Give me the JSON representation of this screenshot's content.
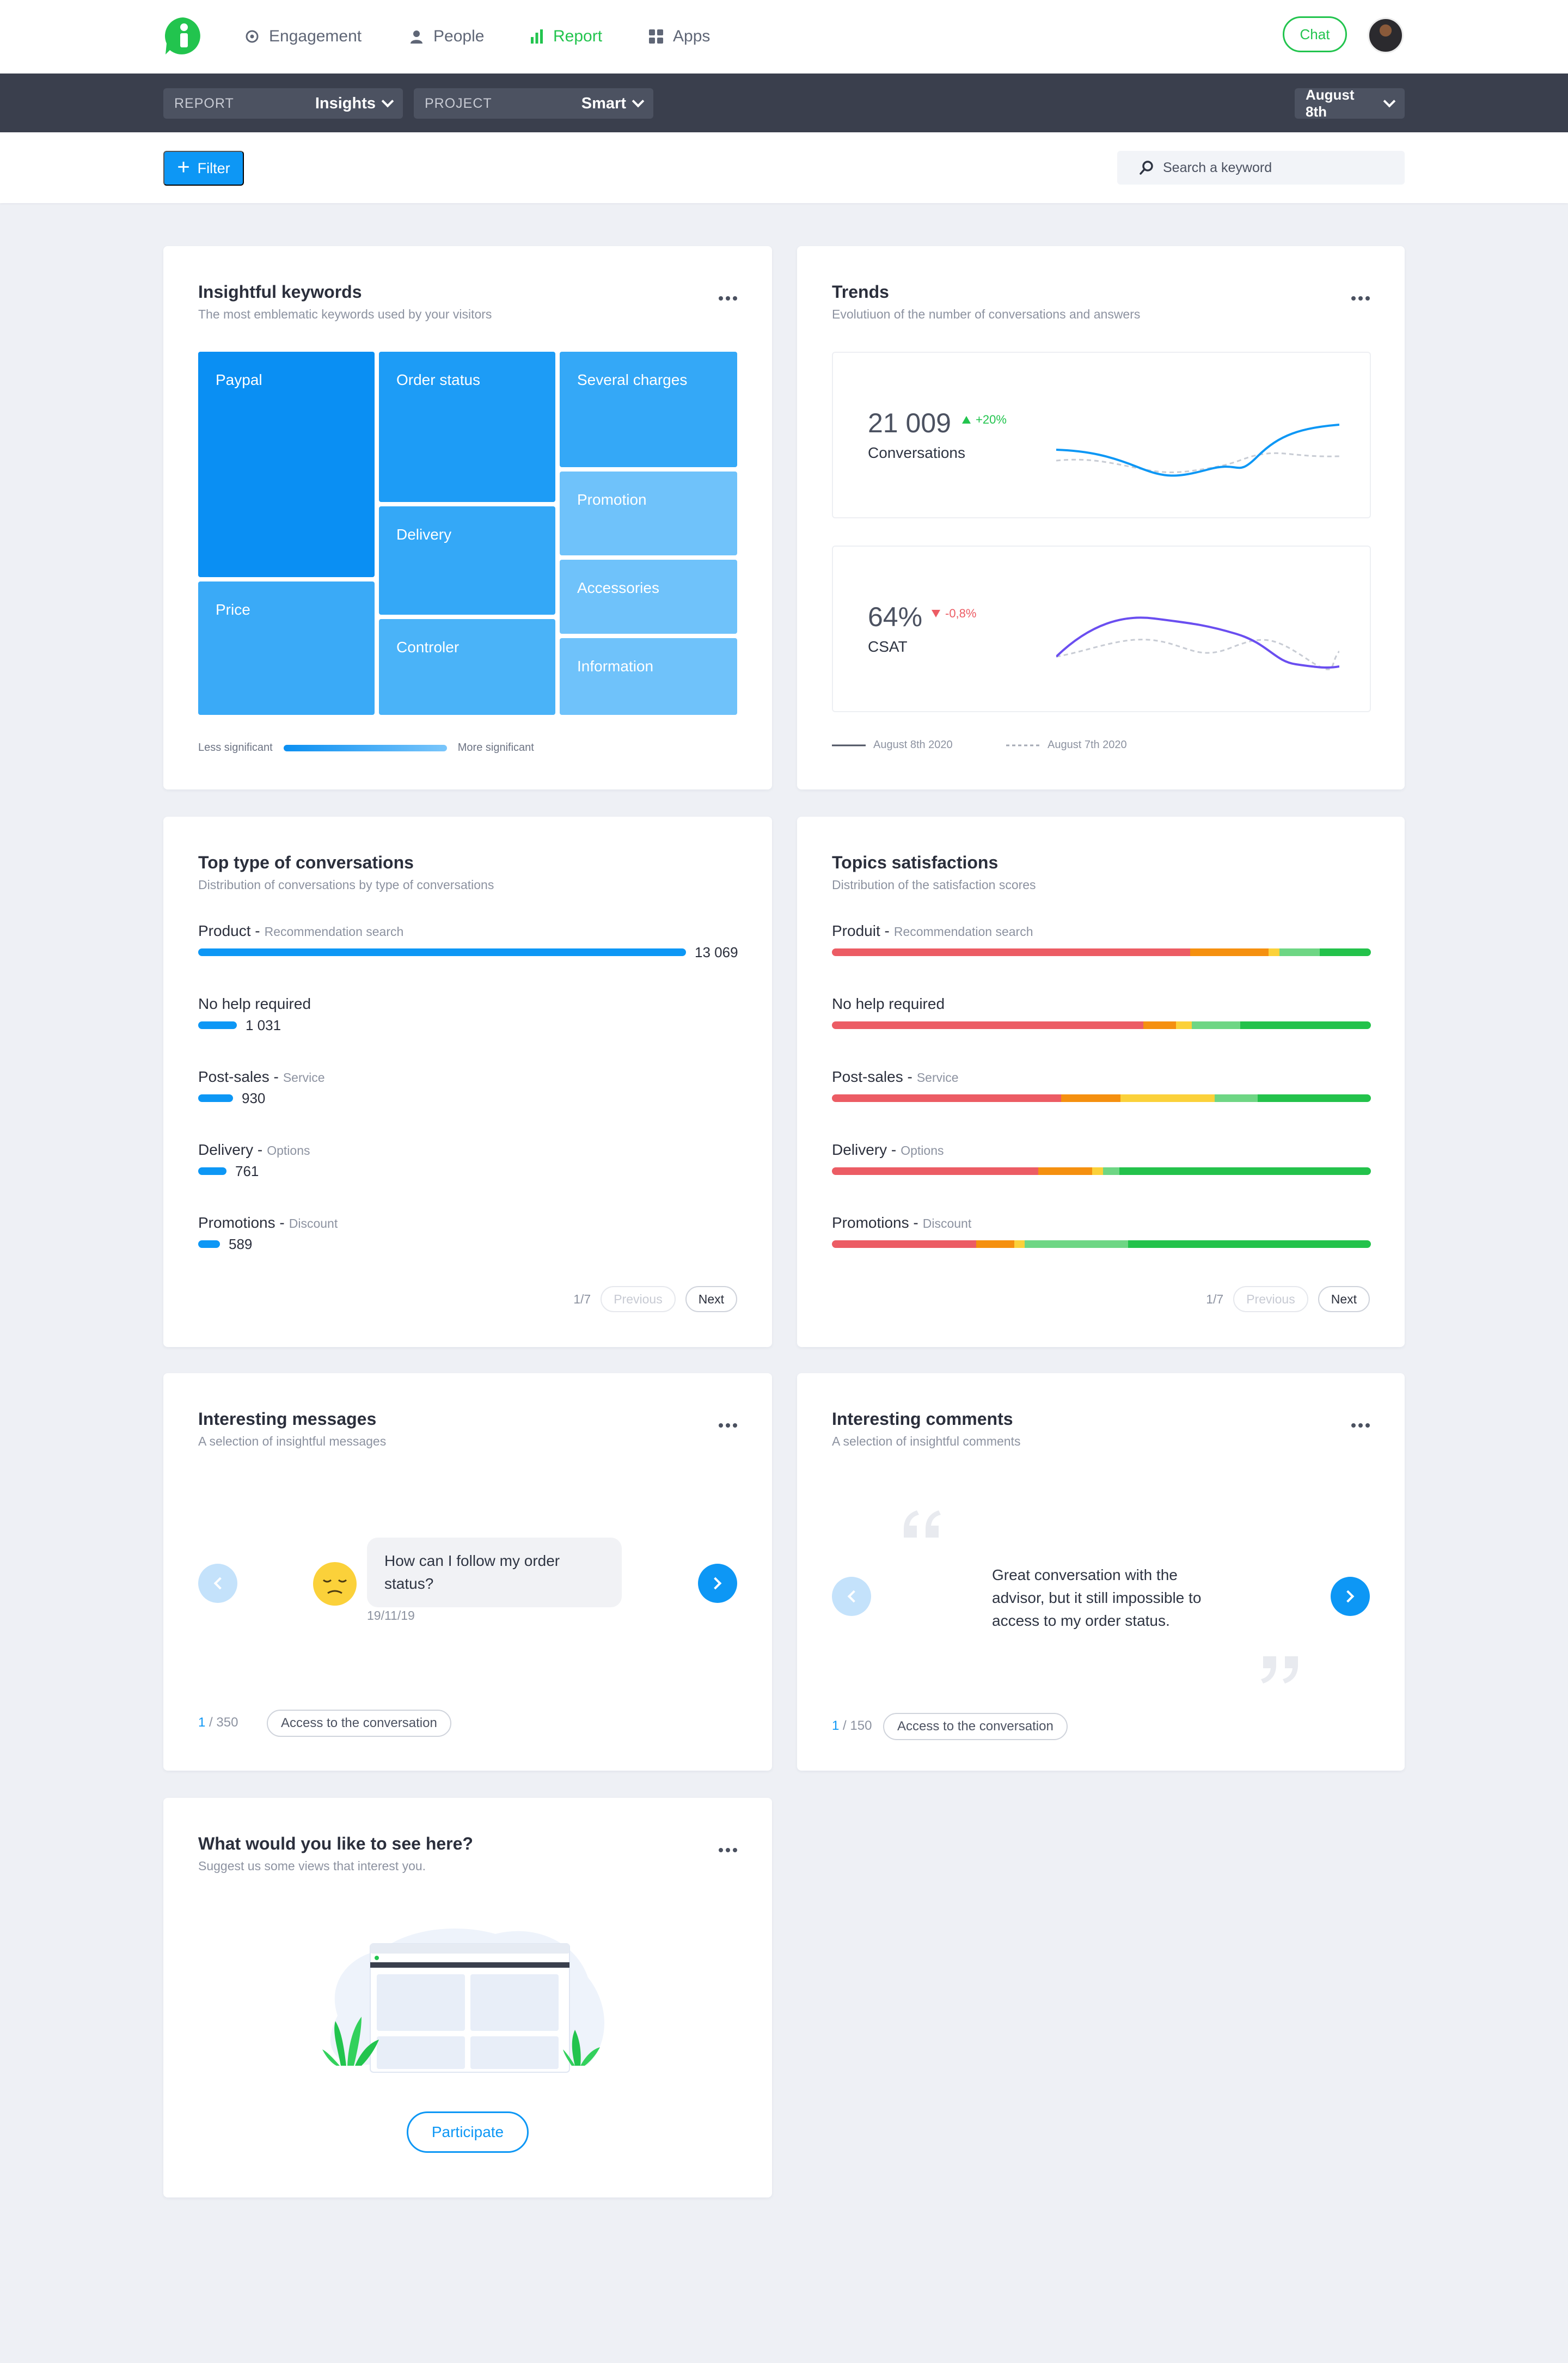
{
  "nav": {
    "items": [
      {
        "label": "Engagement",
        "icon": "target-icon",
        "active": false
      },
      {
        "label": "People",
        "icon": "person-icon",
        "active": false
      },
      {
        "label": "Report",
        "icon": "bar-chart-icon",
        "active": true
      },
      {
        "label": "Apps",
        "icon": "grid-icon",
        "active": false
      }
    ],
    "chat_label": "Chat"
  },
  "subbar": {
    "report_label": "REPORT",
    "report_value": "Insights",
    "project_label": "PROJECT",
    "project_value": "Smart",
    "date_value": "August 8th"
  },
  "filterbar": {
    "filter_label": "Filter",
    "search_placeholder": "Search a keyword"
  },
  "keywords": {
    "title": "Insightful keywords",
    "subtitle": "The most emblematic keywords used by your visitors",
    "tiles": [
      "Paypal",
      "Price",
      "Order status",
      "Delivery",
      "Controler",
      "Several charges",
      "Promotion",
      "Accessories",
      "Information"
    ],
    "legend_low": "Less significant",
    "legend_high": "More significant"
  },
  "trends": {
    "title": "Trends",
    "subtitle": "Evolutiuon of the number of conversations and answers",
    "metrics": [
      {
        "value": "21 009",
        "delta": "+20%",
        "direction": "up",
        "name": "Conversations",
        "color": "#0d97f5"
      },
      {
        "value": "64%",
        "delta": "-0,8%",
        "direction": "down",
        "name": "CSAT",
        "color": "#6a4ef0"
      }
    ],
    "legend_current": "August 8th 2020",
    "legend_previous": "August 7th 2020"
  },
  "top_types": {
    "title": "Top type of conversations",
    "subtitle": "Distribution of conversations by type of conversations",
    "rows": [
      {
        "label": "Product -",
        "sub": "Recommendation search",
        "value": "13 069",
        "fraction": 1.0
      },
      {
        "label": "No help required",
        "sub": "",
        "value": "1 031",
        "fraction": 0.079
      },
      {
        "label": "Post-sales -",
        "sub": "Service",
        "value": "930",
        "fraction": 0.071
      },
      {
        "label": "Delivery -",
        "sub": "Options",
        "value": "761",
        "fraction": 0.058
      },
      {
        "label": "Promotions -",
        "sub": "Discount",
        "value": "589",
        "fraction": 0.045
      }
    ],
    "page": "1/7",
    "prev_label": "Previous",
    "next_label": "Next"
  },
  "topics": {
    "title": "Topics satisfactions",
    "subtitle": "Distribution of the satisfaction scores",
    "rows": [
      {
        "label": "Produit -",
        "sub": "Recommendation search",
        "segments": [
          0.665,
          0.145,
          0.02,
          0.075,
          0.095
        ]
      },
      {
        "label": "No help required",
        "sub": "",
        "segments": [
          0.578,
          0.06,
          0.03,
          0.09,
          0.242
        ]
      },
      {
        "label": "Post-sales -",
        "sub": "Service",
        "segments": [
          0.425,
          0.11,
          0.175,
          0.08,
          0.21
        ]
      },
      {
        "label": "Delivery -",
        "sub": "Options",
        "segments": [
          0.383,
          0.1,
          0.02,
          0.03,
          0.467
        ]
      },
      {
        "label": "Promotions -",
        "sub": "Discount",
        "segments": [
          0.268,
          0.07,
          0.02,
          0.192,
          0.45
        ]
      }
    ],
    "segment_colors": [
      "#ec5c64",
      "#f5900f",
      "#fbd13a",
      "#6ed684",
      "#23c24b"
    ],
    "page": "1/7",
    "prev_label": "Previous",
    "next_label": "Next"
  },
  "messages": {
    "title": "Interesting messages",
    "subtitle": "A selection of insightful messages",
    "message": "How can I follow my order status?",
    "date": "19/11/19",
    "current": "1",
    "total": "/ 350",
    "access_label": "Access to the conversation"
  },
  "comments": {
    "title": "Interesting comments",
    "subtitle": "A selection of insightful comments",
    "comment": "Great conversation with the advisor, but it still impossible to access to my order status.",
    "current": "1",
    "total": "/ 150",
    "access_label": "Access to the conversation"
  },
  "suggest": {
    "title": "What would you like to see here?",
    "subtitle": "Suggest us some views that interest you.",
    "participate_label": "Participate"
  }
}
